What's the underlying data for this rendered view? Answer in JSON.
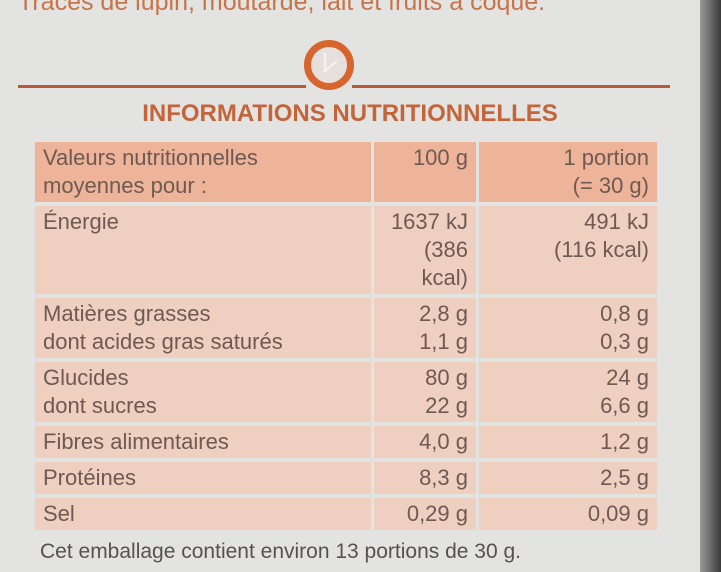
{
  "traces_text": "Traces de lupin, moutarde, lait et fruits à coque.",
  "icon": "clock-icon",
  "title": "INFORMATIONS NUTRITIONNELLES",
  "header": {
    "label_line1": "Valeurs nutritionnelles",
    "label_line2": "moyennes pour :",
    "col1": "100 g",
    "col2_line1": "1 portion",
    "col2_line2": "(= 30 g)"
  },
  "rows": [
    {
      "label1": "Énergie",
      "label2": "",
      "v1a": "1637 kJ",
      "v1b": "(386 kcal)",
      "v2a": "491 kJ",
      "v2b": "(116 kcal)"
    },
    {
      "label1": "Matières grasses",
      "label2": "dont acides gras saturés",
      "v1a": "2,8 g",
      "v1b": "1,1 g",
      "v2a": "0,8 g",
      "v2b": "0,3 g"
    },
    {
      "label1": "Glucides",
      "label2": "dont sucres",
      "v1a": "80 g",
      "v1b": "22 g",
      "v2a": "24 g",
      "v2b": "6,6 g"
    },
    {
      "label1": "Fibres alimentaires",
      "label2": "",
      "v1a": "4,0 g",
      "v1b": "",
      "v2a": "1,2 g",
      "v2b": ""
    },
    {
      "label1": "Protéines",
      "label2": "",
      "v1a": "8,3 g",
      "v1b": "",
      "v2a": "2,5 g",
      "v2b": ""
    },
    {
      "label1": "Sel",
      "label2": "",
      "v1a": "0,29 g",
      "v1b": "",
      "v2a": "0,09 g",
      "v2b": ""
    }
  ],
  "footer": "Cet emballage contient environ 13 portions de 30 g."
}
